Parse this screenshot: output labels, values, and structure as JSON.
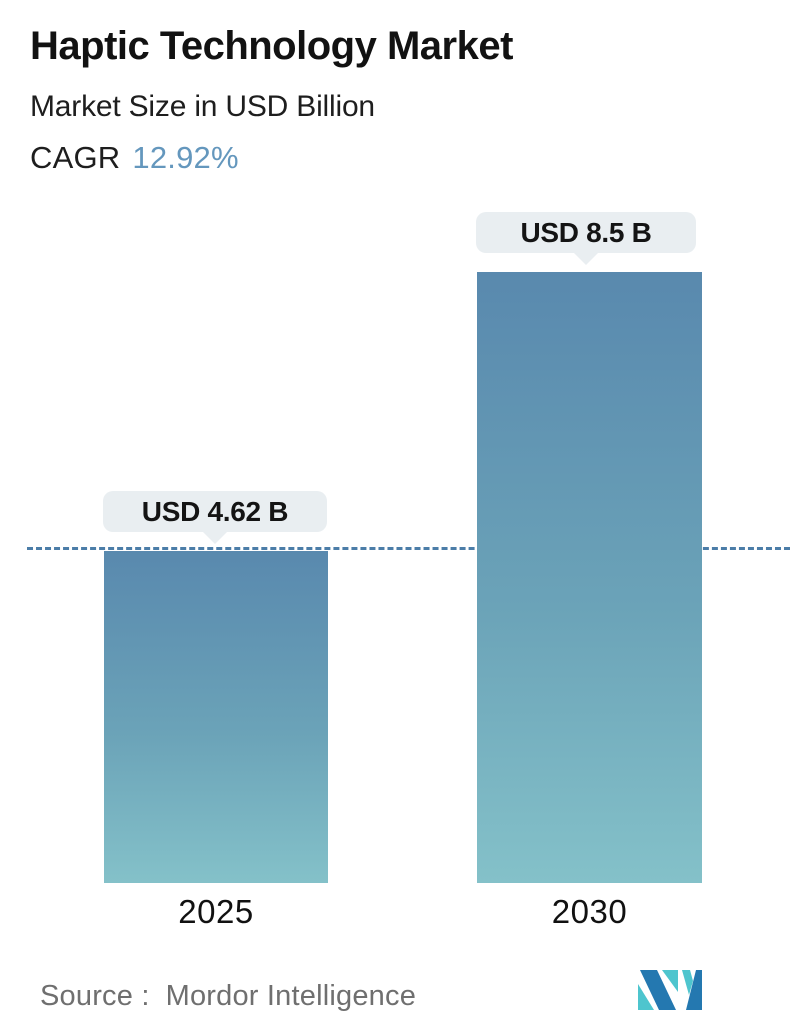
{
  "header": {
    "title": "Haptic Technology Market",
    "subtitle": "Market Size in USD Billion",
    "cagr_label": "CAGR",
    "cagr_value": "12.92%"
  },
  "chart_data": {
    "type": "bar",
    "title": "Haptic Technology Market",
    "subtitle": "Market Size in USD Billion",
    "unit": "USD Billion",
    "cagr_percent": 12.92,
    "categories": [
      "2025",
      "2030"
    ],
    "values": [
      4.62,
      8.5
    ],
    "value_labels": [
      "USD 4.62 B",
      "USD 8.5 B"
    ],
    "ylim": [
      0,
      8.5
    ],
    "grid": false,
    "legend": false,
    "reference_line": {
      "at_value": 4.62,
      "style": "dashed",
      "color": "#4b7da8"
    },
    "bar_gradient_top": "#5989ae",
    "bar_gradient_bottom": "#84c1c9",
    "label_bubble_color": "#e9eef1",
    "accent_blue": "#6497bd"
  },
  "footer": {
    "source_label": "Source :",
    "source_value": "Mordor Intelligence",
    "logo_name": "mordor-intelligence-logo",
    "logo_blue": "#2478b0",
    "logo_teal": "#4ec5ce"
  }
}
